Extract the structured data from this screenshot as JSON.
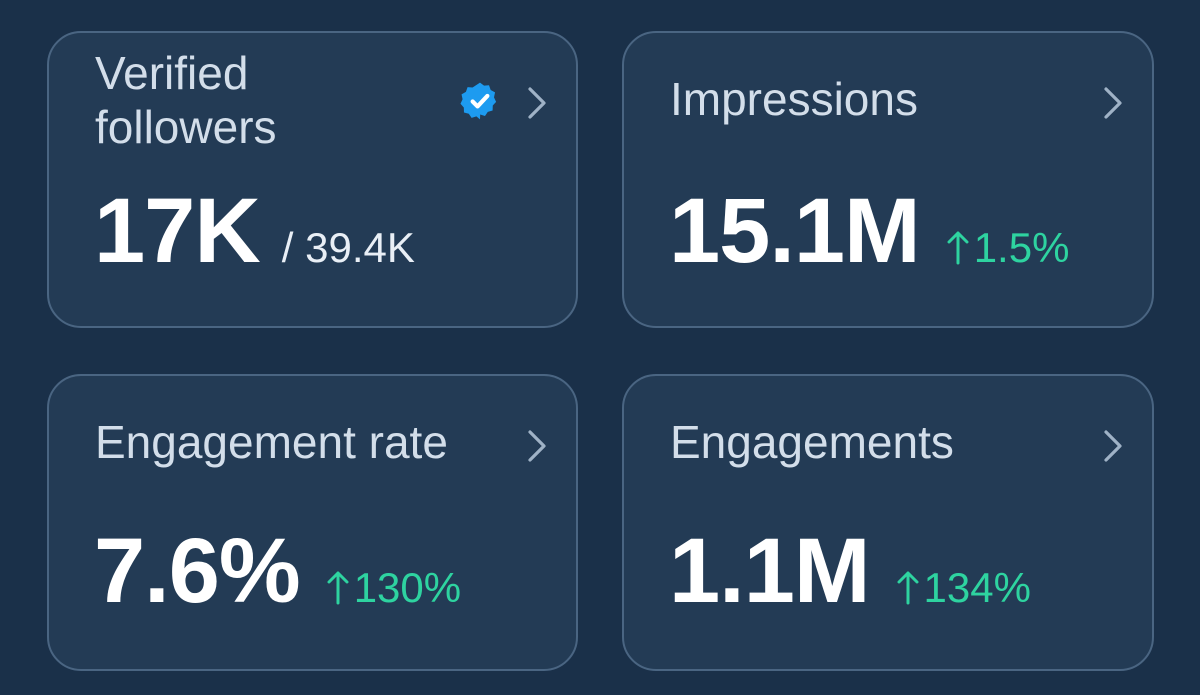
{
  "colors": {
    "background": "#1a3049",
    "card_background": "#233b55",
    "card_border": "#4a6582",
    "title_text": "#d3deea",
    "value_text": "#ffffff",
    "positive_delta": "#2ed3a0",
    "verified_badge": "#1d9bf0",
    "chevron": "#9fb2c6"
  },
  "cards": [
    {
      "title": "Verified followers",
      "icon": "verified-badge-icon",
      "value": "17K",
      "secondary_value": "/ 39.4K",
      "chevron_icon": "chevron-right-icon"
    },
    {
      "title": "Impressions",
      "value": "15.1M",
      "delta": "1.5%",
      "delta_icon": "arrow-up-icon",
      "chevron_icon": "chevron-right-icon"
    },
    {
      "title": "Engagement rate",
      "value": "7.6%",
      "delta": "130%",
      "delta_icon": "arrow-up-icon",
      "chevron_icon": "chevron-right-icon"
    },
    {
      "title": "Engagements",
      "value": "1.1M",
      "delta": "134%",
      "delta_icon": "arrow-up-icon",
      "chevron_icon": "chevron-right-icon"
    }
  ]
}
